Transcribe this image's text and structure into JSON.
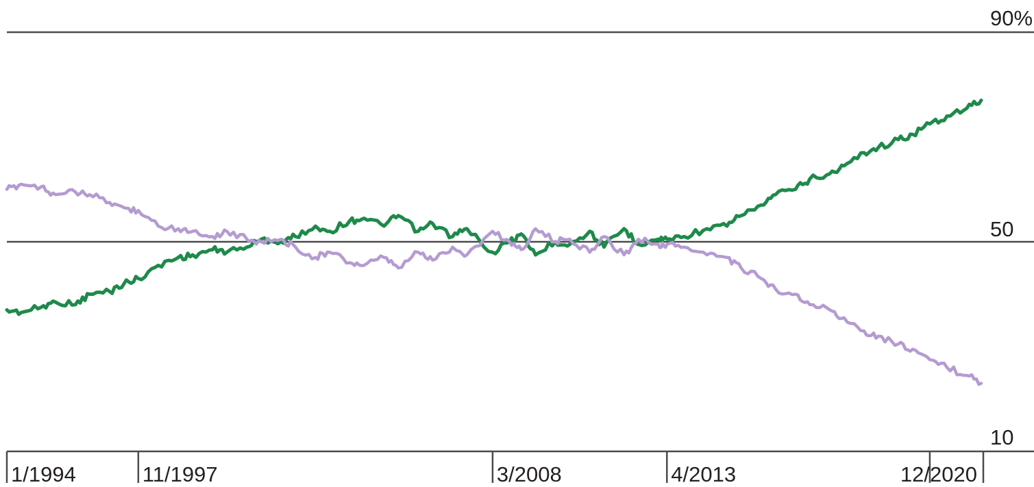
{
  "chart_data": {
    "type": "line",
    "title": "",
    "xlabel": "",
    "ylabel": "",
    "x_domain": [
      "1994-01",
      "2022-06"
    ],
    "x_ticks": [
      {
        "label": "1/1994",
        "date": "1994-01"
      },
      {
        "label": "11/1997",
        "date": "1997-11"
      },
      {
        "label": "3/2008",
        "date": "2008-03"
      },
      {
        "label": "4/2013",
        "date": "2013-04"
      },
      {
        "label": "12/2020",
        "date": "2020-12"
      }
    ],
    "ylim": [
      10,
      90
    ],
    "y_ticks": [
      {
        "label": "90%",
        "value": 90
      },
      {
        "label": "50",
        "value": 50
      },
      {
        "label": "10",
        "value": 10
      }
    ],
    "grid_lines": [
      90,
      50
    ],
    "legend": "none",
    "series": [
      {
        "color": "#1e8a4a",
        "points": [
          [
            "1994-01",
            37
          ],
          [
            "1994-06",
            36.5
          ],
          [
            "1995-01",
            37.5
          ],
          [
            "1995-06",
            38.5
          ],
          [
            "1996-01",
            38
          ],
          [
            "1996-06",
            40
          ],
          [
            "1997-01",
            40.5
          ],
          [
            "1997-06",
            42
          ],
          [
            "1997-11",
            43
          ],
          [
            "1998-06",
            45.5
          ],
          [
            "1999-01",
            47
          ],
          [
            "1999-06",
            47.5
          ],
          [
            "2000-01",
            48.5
          ],
          [
            "2000-06",
            48
          ],
          [
            "2001-01",
            49
          ],
          [
            "2001-06",
            50.5
          ],
          [
            "2002-01",
            50
          ],
          [
            "2002-06",
            51
          ],
          [
            "2003-01",
            53
          ],
          [
            "2003-06",
            52
          ],
          [
            "2004-01",
            54
          ],
          [
            "2004-06",
            54.5
          ],
          [
            "2005-01",
            53
          ],
          [
            "2005-06",
            55
          ],
          [
            "2006-01",
            52
          ],
          [
            "2006-06",
            53.5
          ],
          [
            "2007-01",
            51
          ],
          [
            "2007-06",
            52.5
          ],
          [
            "2008-03",
            48
          ],
          [
            "2008-09",
            50
          ],
          [
            "2009-01",
            51.5
          ],
          [
            "2009-06",
            47.5
          ],
          [
            "2010-01",
            50
          ],
          [
            "2010-06",
            49.5
          ],
          [
            "2011-01",
            52
          ],
          [
            "2011-06",
            49
          ],
          [
            "2012-01",
            52.5
          ],
          [
            "2012-06",
            49.5
          ],
          [
            "2013-01",
            50.5
          ],
          [
            "2013-04",
            50.5
          ],
          [
            "2013-10",
            51
          ],
          [
            "2014-06",
            52.5
          ],
          [
            "2015-01",
            53
          ],
          [
            "2015-06",
            55
          ],
          [
            "2016-01",
            57
          ],
          [
            "2016-06",
            59
          ],
          [
            "2017-01",
            60
          ],
          [
            "2017-06",
            62
          ],
          [
            "2018-01",
            63
          ],
          [
            "2018-06",
            64.5
          ],
          [
            "2019-01",
            67
          ],
          [
            "2019-06",
            68
          ],
          [
            "2020-01",
            69.5
          ],
          [
            "2020-06",
            70.5
          ],
          [
            "2020-12",
            72.5
          ],
          [
            "2021-06",
            74
          ],
          [
            "2022-01",
            75.5
          ],
          [
            "2022-06",
            77
          ]
        ]
      },
      {
        "color": "#b49bd1",
        "points": [
          [
            "1994-01",
            60
          ],
          [
            "1994-06",
            61
          ],
          [
            "1995-01",
            60.5
          ],
          [
            "1995-06",
            59
          ],
          [
            "1996-01",
            59.5
          ],
          [
            "1996-06",
            59
          ],
          [
            "1997-01",
            57.5
          ],
          [
            "1997-06",
            56.5
          ],
          [
            "1997-11",
            56
          ],
          [
            "1998-06",
            53
          ],
          [
            "1999-01",
            52.5
          ],
          [
            "1999-06",
            52
          ],
          [
            "2000-01",
            51
          ],
          [
            "2000-06",
            52
          ],
          [
            "2001-01",
            50.5
          ],
          [
            "2001-06",
            50
          ],
          [
            "2002-01",
            50.5
          ],
          [
            "2002-06",
            49
          ],
          [
            "2003-01",
            47
          ],
          [
            "2003-06",
            48
          ],
          [
            "2004-01",
            46
          ],
          [
            "2004-06",
            45.5
          ],
          [
            "2005-01",
            47
          ],
          [
            "2005-06",
            45
          ],
          [
            "2006-01",
            48
          ],
          [
            "2006-06",
            46.5
          ],
          [
            "2007-01",
            49
          ],
          [
            "2007-06",
            47.5
          ],
          [
            "2008-03",
            52
          ],
          [
            "2008-09",
            50
          ],
          [
            "2009-01",
            48.5
          ],
          [
            "2009-06",
            52.5
          ],
          [
            "2010-01",
            50
          ],
          [
            "2010-06",
            50.5
          ],
          [
            "2011-01",
            48
          ],
          [
            "2011-06",
            51
          ],
          [
            "2012-01",
            47.5
          ],
          [
            "2012-06",
            50.5
          ],
          [
            "2013-01",
            49.5
          ],
          [
            "2013-04",
            49.5
          ],
          [
            "2013-10",
            49
          ],
          [
            "2014-06",
            47.5
          ],
          [
            "2015-01",
            47
          ],
          [
            "2015-06",
            45
          ],
          [
            "2016-01",
            43
          ],
          [
            "2016-06",
            41
          ],
          [
            "2017-01",
            40
          ],
          [
            "2017-06",
            38
          ],
          [
            "2018-01",
            37
          ],
          [
            "2018-06",
            35.5
          ],
          [
            "2019-01",
            33
          ],
          [
            "2019-06",
            32
          ],
          [
            "2020-01",
            30.5
          ],
          [
            "2020-06",
            29.5
          ],
          [
            "2020-12",
            27.5
          ],
          [
            "2021-06",
            26
          ],
          [
            "2022-01",
            24.5
          ],
          [
            "2022-06",
            23
          ]
        ]
      }
    ]
  }
}
